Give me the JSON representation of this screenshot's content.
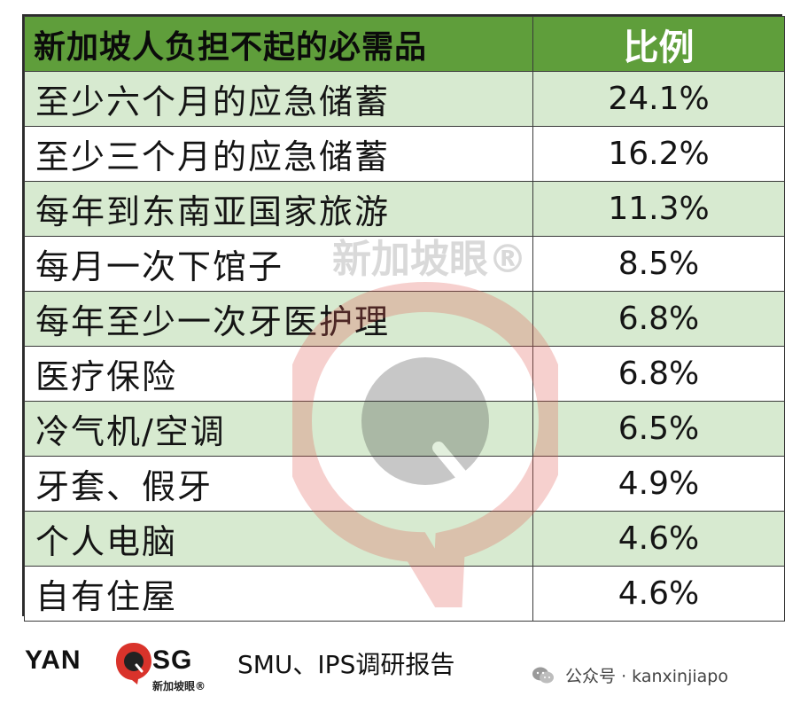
{
  "table": {
    "header": {
      "item": "新加坡人负担不起的必需品",
      "ratio": "比例"
    },
    "rows": [
      {
        "item": "至少六个月的应急储蓄",
        "value": "24.1%"
      },
      {
        "item": "至少三个月的应急储蓄",
        "value": "16.2%"
      },
      {
        "item": "每年到东南亚国家旅游",
        "value": "11.3%"
      },
      {
        "item": "每月一次下馆子",
        "value": "8.5%"
      },
      {
        "item": "每年至少一次牙医护理",
        "value": "6.8%"
      },
      {
        "item": "医疗保险",
        "value": "6.8%"
      },
      {
        "item": "冷气机/空调",
        "value": "6.5%"
      },
      {
        "item": "牙套、假牙",
        "value": "4.9%"
      },
      {
        "item": "个人电脑",
        "value": "4.6%"
      },
      {
        "item": "自有住屋",
        "value": "4.6%"
      }
    ]
  },
  "watermark": {
    "text": "新加坡眼®"
  },
  "footer": {
    "logo_left": "YAN",
    "logo_right": "SG",
    "logo_sub": "新加坡眼®",
    "source": "SMU、IPS调研报告",
    "wechat": "公众号 · kanxinjiapo"
  },
  "colors": {
    "header_green": "#5f9e3b",
    "row_light_green": "#d7ead0",
    "brand_red": "#d9332b"
  },
  "icons": [
    "yan-sg-logo-icon",
    "wechat-icon"
  ]
}
